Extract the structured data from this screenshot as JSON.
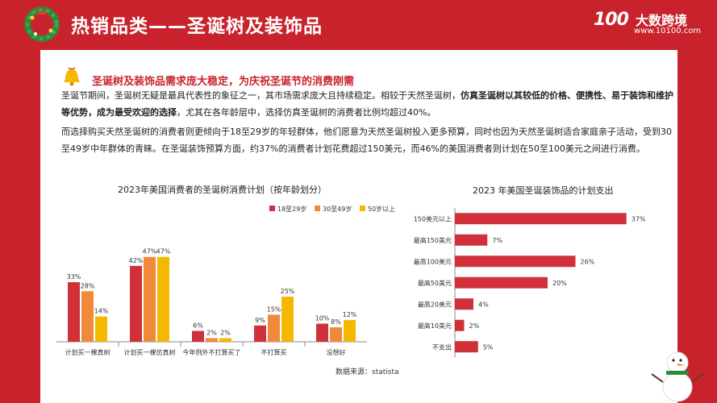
{
  "header": {
    "title": "热销品类——圣诞树及装饰品",
    "brand_logo": "100",
    "brand_name": "大数跨境",
    "brand_url": "www.10100.com"
  },
  "subheading": "圣诞树及装饰品需求庞大稳定，为庆祝圣诞节的消费刚需",
  "paragraph1": {
    "pre": "圣诞节期间，圣诞树无疑是最具代表性的象征之一，其市场需求庞大且持续稳定。相较于天然圣诞树，",
    "bold": "仿真圣诞树以其较低的价格、便携性、易于装饰和维护等优势，成为最受欢迎的选择",
    "post": "，尤其在各年龄层中，选择仿真圣诞树的消费者比例均超过40%。"
  },
  "paragraph2": "而选择购买天然圣诞树的消费者则更倾向于18至29岁的年轻群体，他们愿意为天然圣诞树投入更多预算，同时也因为天然圣诞树适合家庭亲子活动，受到30至49岁中年群体的青睐。在圣诞装饰预算方面，约37%的消费者计划花费超过150美元，而46%的美国消费者则计划在50至100美元之间进行消费。",
  "source": "数据来源：statista",
  "colors": {
    "red": "#c8232c",
    "orange": "#f08a3a",
    "yellow": "#f5b800",
    "bar_red": "#d0303a"
  },
  "chart_data": [
    {
      "type": "bar",
      "title": "2023年美国消费者的圣诞树消费计划（按年龄划分）",
      "categories": [
        "计划买一棵真树",
        "计划买一棵仿真树",
        "今年例外不打算买了",
        "不打算买",
        "没想好"
      ],
      "series": [
        {
          "name": "18至29岁",
          "values": [
            33,
            42,
            6,
            9,
            10
          ]
        },
        {
          "name": "30至49岁",
          "values": [
            28,
            47,
            2,
            15,
            8
          ]
        },
        {
          "name": "50岁以上",
          "values": [
            14,
            47,
            2,
            25,
            12
          ]
        }
      ],
      "ylim": [
        0,
        50
      ],
      "legend": "top-right"
    },
    {
      "type": "bar",
      "orientation": "horizontal",
      "title": "2023 年美国圣诞装饰品的计划支出",
      "categories": [
        "150美元以上",
        "最高150美元",
        "最高100美元",
        "最高50美元",
        "最高20美元",
        "最高10美元",
        "不支出"
      ],
      "values": [
        37,
        7,
        26,
        20,
        4,
        2,
        5
      ],
      "xlim": [
        0,
        40
      ]
    }
  ]
}
